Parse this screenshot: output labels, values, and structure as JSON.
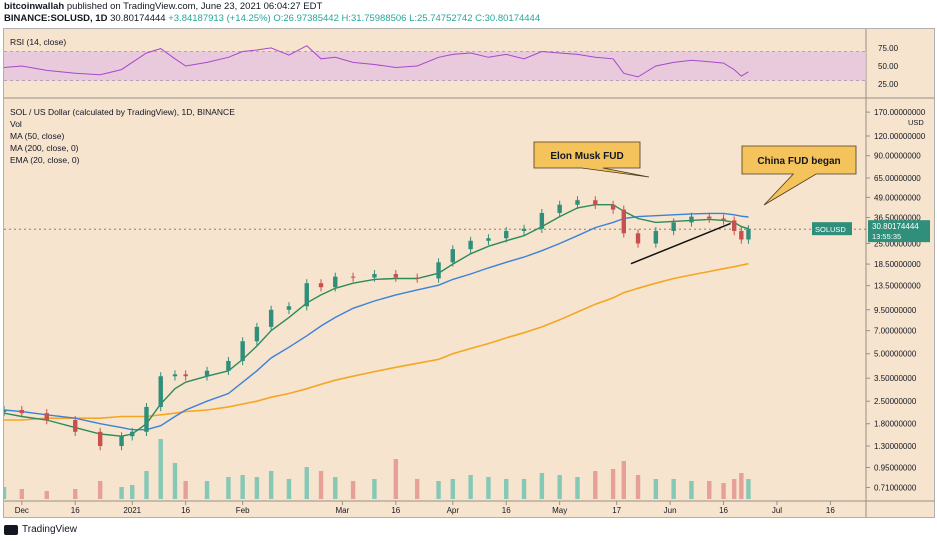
{
  "header": {
    "author": "bitcoinwallah",
    "published": "published on TradingView.com, June 23, 2021 06:04:27 EDT",
    "symbol": "BINANCE:SOLUSD, 1D",
    "last": "30.80174444",
    "change": "+3.84187913 (+14.25%)",
    "ohlc": "O:26.97385442 H:31.75988506 L:25.74752742 C:30.80174444"
  },
  "rsi_panel": {
    "label": "RSI (14, close)",
    "ticks": [
      "75.00",
      "50.00",
      "25.00"
    ]
  },
  "price_panel": {
    "title": "SOL / US Dollar (calculated by TradingView), 1D, BINANCE",
    "legend": [
      "Vol",
      "MA (50, close)",
      "MA (200, close, 0)",
      "EMA (20, close, 0)"
    ],
    "currency": "USD",
    "price_ticks": [
      "170.00000000",
      "120.00000000",
      "90.00000000",
      "65.00000000",
      "49.00000000",
      "36.50000000",
      "25.00000000",
      "18.50000000",
      "13.50000000",
      "9.50000000",
      "7.00000000",
      "5.00000000",
      "3.50000000",
      "2.50000000",
      "1.80000000",
      "1.30000000",
      "0.95000000",
      "0.71000000"
    ],
    "last_badge": {
      "symbol": "SOLUSD",
      "price": "30.80174444",
      "countdown": "13:55:35"
    }
  },
  "annotations": {
    "elon": "Elon Musk FUD",
    "china": "China FUD began"
  },
  "x_ticks": [
    "Dec",
    "16",
    "2021",
    "16",
    "Feb",
    "Mar",
    "16",
    "Apr",
    "16",
    "May",
    "17",
    "Jun",
    "16",
    "Jul",
    "16"
  ],
  "footer": {
    "brand": "TradingView"
  },
  "colors": {
    "background": "#f6e4cf",
    "candle_up": "#2f8f7a",
    "candle_down": "#c8504f",
    "ema20": "#2e8b57",
    "ma50": "#3b82d6",
    "ma200": "#f5a623",
    "rsi": "#a64ac9",
    "rsi_band": "#e6c2de",
    "callout": "#f4c35c"
  },
  "chart_data": {
    "type": "candlestick",
    "title": "SOL / US Dollar (calculated by TradingView), 1D, BINANCE",
    "y_scale": "log",
    "ylim": [
      0.6,
      200
    ],
    "dates": [
      "2020-11-26",
      "2020-12-01",
      "2020-12-08",
      "2020-12-16",
      "2020-12-23",
      "2020-12-29",
      "2021-01-01",
      "2021-01-05",
      "2021-01-09",
      "2021-01-13",
      "2021-01-16",
      "2021-01-22",
      "2021-01-28",
      "2021-02-01",
      "2021-02-05",
      "2021-02-09",
      "2021-02-14",
      "2021-02-19",
      "2021-02-23",
      "2021-02-27",
      "2021-03-04",
      "2021-03-10",
      "2021-03-16",
      "2021-03-22",
      "2021-03-28",
      "2021-04-01",
      "2021-04-06",
      "2021-04-11",
      "2021-04-16",
      "2021-04-21",
      "2021-04-26",
      "2021-05-01",
      "2021-05-06",
      "2021-05-11",
      "2021-05-16",
      "2021-05-19",
      "2021-05-23",
      "2021-05-28",
      "2021-06-02",
      "2021-06-07",
      "2021-06-12",
      "2021-06-16",
      "2021-06-19",
      "2021-06-21",
      "2021-06-23"
    ],
    "close": [
      2.2,
      2.1,
      1.9,
      1.6,
      1.3,
      1.5,
      1.6,
      2.3,
      3.6,
      3.7,
      3.6,
      3.9,
      4.5,
      6.0,
      7.4,
      9.5,
      10.0,
      14.0,
      13.2,
      15.4,
      15.2,
      16.0,
      15.2,
      15.0,
      19.0,
      23.0,
      26.0,
      27.0,
      30.0,
      31.0,
      39.0,
      44.0,
      47.0,
      44.0,
      41.0,
      29.0,
      25.0,
      30.0,
      34.0,
      37.0,
      36.0,
      35.0,
      30.0,
      26.5,
      30.8
    ],
    "ema20": [
      2.1,
      2.0,
      1.9,
      1.7,
      1.55,
      1.5,
      1.55,
      1.8,
      2.4,
      3.0,
      3.3,
      3.6,
      3.9,
      4.6,
      5.6,
      7.0,
      8.5,
      10.5,
      11.8,
      13.0,
      14.0,
      14.8,
      15.0,
      15.0,
      16.2,
      18.5,
      21.5,
      24.0,
      26.0,
      28.0,
      32.0,
      37.0,
      42.0,
      44.0,
      44.0,
      40.0,
      36.0,
      34.0,
      34.5,
      35.0,
      35.5,
      35.0,
      34.0,
      32.0,
      31.0
    ],
    "ma50": [
      2.2,
      2.15,
      2.05,
      1.95,
      1.8,
      1.7,
      1.65,
      1.65,
      1.75,
      2.0,
      2.2,
      2.5,
      2.8,
      3.3,
      3.9,
      4.7,
      5.5,
      6.5,
      7.5,
      8.5,
      9.7,
      10.8,
      11.8,
      12.7,
      13.6,
      14.8,
      16.0,
      17.5,
      19.0,
      20.5,
      22.5,
      25.0,
      28.0,
      31.5,
      34.0,
      36.0,
      37.0,
      37.5,
      38.0,
      38.5,
      38.8,
      38.8,
      38.0,
      37.2,
      36.8
    ],
    "ma200": [
      1.9,
      1.9,
      1.95,
      1.95,
      1.95,
      2.0,
      2.0,
      2.0,
      2.05,
      2.1,
      2.15,
      2.2,
      2.3,
      2.4,
      2.5,
      2.65,
      2.8,
      3.0,
      3.2,
      3.4,
      3.6,
      3.85,
      4.1,
      4.35,
      4.6,
      5.0,
      5.4,
      5.8,
      6.3,
      6.8,
      7.4,
      8.2,
      9.2,
      10.3,
      11.3,
      12.2,
      13.0,
      14.0,
      15.0,
      15.8,
      16.6,
      17.3,
      17.8,
      18.2,
      18.6
    ],
    "rsi": [
      48,
      50,
      44,
      40,
      38,
      45,
      55,
      68,
      74,
      60,
      50,
      55,
      62,
      70,
      72,
      75,
      65,
      78,
      60,
      62,
      55,
      52,
      48,
      50,
      62,
      66,
      68,
      62,
      66,
      60,
      70,
      68,
      66,
      62,
      60,
      40,
      35,
      50,
      55,
      58,
      56,
      54,
      45,
      36,
      42
    ],
    "volume": [
      0.6,
      0.5,
      0.4,
      0.5,
      0.9,
      0.6,
      0.7,
      1.4,
      3.0,
      1.8,
      0.9,
      0.9,
      1.1,
      1.2,
      1.1,
      1.4,
      1.0,
      1.6,
      1.4,
      1.1,
      0.9,
      1.0,
      2.0,
      1.0,
      0.9,
      1.0,
      1.2,
      1.1,
      1.0,
      1.0,
      1.3,
      1.2,
      1.1,
      1.4,
      1.5,
      1.9,
      1.2,
      1.0,
      1.0,
      0.9,
      0.9,
      0.8,
      1.0,
      1.3,
      1.0
    ]
  }
}
